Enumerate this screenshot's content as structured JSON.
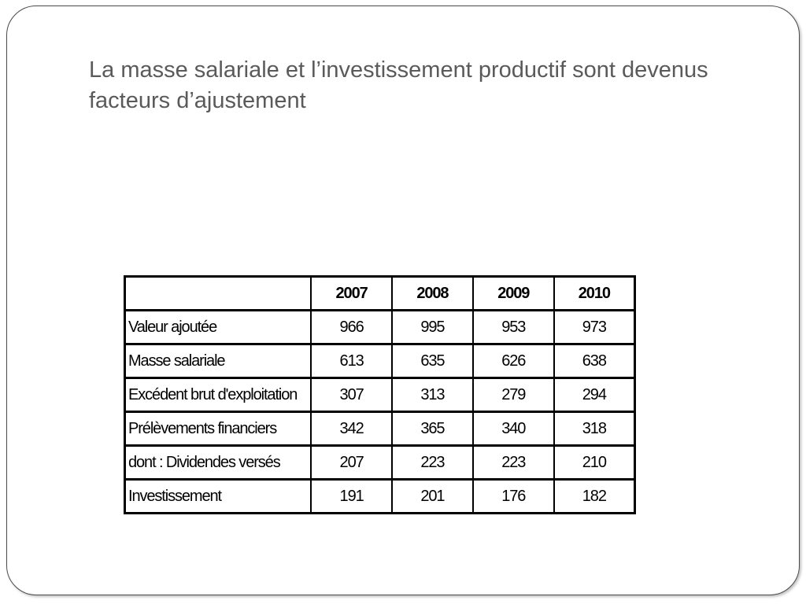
{
  "slide": {
    "title": "La masse salariale et l’investissement productif sont devenus facteurs d’ajustement"
  },
  "table": {
    "corner": "",
    "years": [
      "2007",
      "2008",
      "2009",
      "2010"
    ],
    "rows": [
      {
        "label": "Valeur ajoutée",
        "values": [
          "966",
          "995",
          "953",
          "973"
        ]
      },
      {
        "label": "Masse salariale",
        "values": [
          "613",
          "635",
          "626",
          "638"
        ]
      },
      {
        "label": "Excédent brut d'exploitation",
        "values": [
          "307",
          "313",
          "279",
          "294"
        ]
      },
      {
        "label": "Prélèvements financiers",
        "values": [
          "342",
          "365",
          "340",
          "318"
        ]
      },
      {
        "label": "dont : Dividendes versés",
        "values": [
          "207",
          "223",
          "223",
          "210"
        ]
      },
      {
        "label": "Investissement",
        "values": [
          "191",
          "201",
          "176",
          "182"
        ]
      }
    ]
  }
}
